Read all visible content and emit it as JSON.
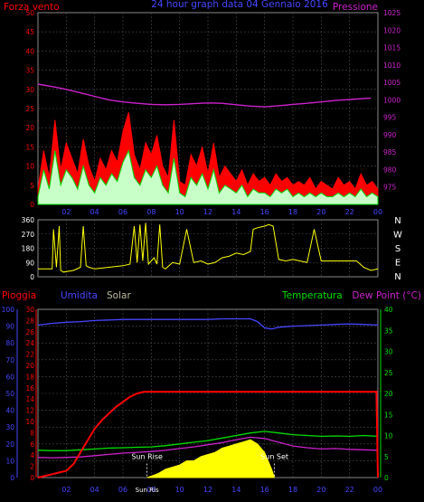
{
  "colors": {
    "bg": "#000000",
    "grid": "#4a4a4a",
    "red": "#ff0000",
    "blue": "#4646ff",
    "magenta": "#cc22cc",
    "green": "#00dd00",
    "yellow": "#ffff00",
    "white": "#ffffff",
    "tan": "#bbbb99",
    "lightgreen": "#c8ffc8"
  },
  "chart_data": [
    {
      "type": "line",
      "name": "wind-pressure",
      "title": "24 hour graph data 04 Gennaio 2016",
      "ylabel_left": "Forza vento",
      "ylabel_right": "Pressione",
      "ylim_left": [
        0,
        50
      ],
      "yticks_left": [
        "0",
        "5",
        "10",
        "15",
        "20",
        "25",
        "30",
        "35",
        "40",
        "45",
        "50"
      ],
      "ylim_right": [
        970,
        1025
      ],
      "yticks_right": [
        "975",
        "980",
        "985",
        "990",
        "995",
        "1000",
        "1005",
        "1010",
        "1015",
        "1020",
        "1025"
      ],
      "xlim": [
        0,
        24
      ],
      "xticks": [
        "02",
        "04",
        "06",
        "08",
        "10",
        "12",
        "14",
        "16",
        "18",
        "20",
        "22",
        "00"
      ],
      "grid": true,
      "pressure": {
        "x": [
          0,
          1,
          2,
          3,
          4,
          5,
          6,
          7,
          8,
          9,
          10,
          11,
          12,
          13,
          14,
          15,
          16,
          17,
          18,
          19,
          20,
          21,
          22,
          23.5
        ],
        "y": [
          1004.5,
          1003.8,
          1003,
          1002,
          1001,
          1000,
          999.4,
          999,
          998.7,
          998.6,
          998.7,
          998.9,
          999.1,
          999.0,
          998.6,
          998.2,
          998.0,
          998.3,
          998.7,
          999.0,
          999.4,
          999.8,
          1000.1,
          1000.5
        ]
      },
      "gust": {
        "x": [
          0,
          0.4,
          0.8,
          1.2,
          1.6,
          2.0,
          2.4,
          2.8,
          3.2,
          3.6,
          4.0,
          4.4,
          4.8,
          5.2,
          5.6,
          6.0,
          6.4,
          6.8,
          7.2,
          7.6,
          8.0,
          8.4,
          8.8,
          9.2,
          9.6,
          10.0,
          10.4,
          10.8,
          11.2,
          11.6,
          12.0,
          12.4,
          12.8,
          13.2,
          13.6,
          14.0,
          14.4,
          14.8,
          15.2,
          15.6,
          16.0,
          16.4,
          16.8,
          17.2,
          17.6,
          18.0,
          18.4,
          18.8,
          19.2,
          19.6,
          20.0,
          20.4,
          20.8,
          21.2,
          21.6,
          22.0,
          22.4,
          22.8,
          23.2,
          23.6,
          24.0
        ],
        "y": [
          4,
          14,
          7,
          22,
          9,
          16,
          12,
          8,
          17,
          10,
          6,
          12,
          9,
          14,
          11,
          19,
          24,
          13,
          9,
          16,
          13,
          18,
          10,
          7,
          22,
          6,
          5,
          13,
          10,
          15,
          8,
          16,
          7,
          10,
          8,
          6,
          9,
          5,
          8,
          6,
          7,
          5,
          8,
          6,
          7,
          5,
          6,
          5,
          7,
          4,
          6,
          5,
          4,
          7,
          5,
          6,
          4,
          8,
          5,
          6,
          4
        ]
      },
      "speed": {
        "x": [
          0,
          0.4,
          0.8,
          1.2,
          1.6,
          2.0,
          2.4,
          2.8,
          3.2,
          3.6,
          4.0,
          4.4,
          4.8,
          5.2,
          5.6,
          6.0,
          6.4,
          6.8,
          7.2,
          7.6,
          8.0,
          8.4,
          8.8,
          9.2,
          9.6,
          10.0,
          10.4,
          10.8,
          11.2,
          11.6,
          12.0,
          12.4,
          12.8,
          13.2,
          13.6,
          14.0,
          14.4,
          14.8,
          15.2,
          15.6,
          16.0,
          16.4,
          16.8,
          17.2,
          17.6,
          18.0,
          18.4,
          18.8,
          19.2,
          19.6,
          20.0,
          20.4,
          20.8,
          21.2,
          21.6,
          22.0,
          22.4,
          22.8,
          23.2,
          23.6,
          24.0
        ],
        "y": [
          2,
          9,
          4,
          14,
          5,
          9,
          7,
          4,
          10,
          5,
          3,
          7,
          5,
          8,
          6,
          11,
          14,
          7,
          5,
          9,
          7,
          10,
          5,
          3,
          12,
          3,
          2,
          7,
          5,
          8,
          4,
          9,
          3,
          5,
          4,
          3,
          5,
          2,
          4,
          3,
          3,
          2,
          4,
          3,
          4,
          2,
          3,
          2,
          3,
          2,
          3,
          2,
          2,
          3,
          2,
          3,
          2,
          4,
          2,
          3,
          2
        ]
      }
    },
    {
      "type": "line",
      "name": "wind-direction",
      "ylim": [
        0,
        360
      ],
      "yticks": [
        "0",
        "90",
        "180",
        "270",
        "360"
      ],
      "compass": [
        "N",
        "W",
        "S",
        "E",
        "N"
      ],
      "xlim": [
        0,
        24
      ],
      "grid": true,
      "direction": {
        "x": [
          0,
          1.0,
          1.1,
          1.3,
          1.5,
          1.6,
          1.8,
          2.5,
          3.0,
          3.2,
          3.4,
          3.6,
          4.0,
          5.0,
          6.0,
          6.5,
          6.8,
          7.0,
          7.2,
          7.4,
          7.6,
          7.8,
          8.0,
          8.2,
          8.4,
          8.6,
          8.8,
          9.0,
          9.5,
          10.0,
          10.5,
          11.0,
          11.5,
          12.0,
          12.5,
          13.0,
          13.5,
          14.0,
          14.5,
          15.0,
          15.2,
          15.5,
          16.0,
          16.3,
          16.6,
          17.0,
          17.5,
          18.0,
          18.5,
          19.0,
          19.5,
          20.0,
          21.0,
          22.0,
          22.5,
          23.0,
          23.5,
          24.0
        ],
        "y": [
          50,
          50,
          300,
          60,
          320,
          40,
          30,
          40,
          60,
          320,
          70,
          60,
          50,
          60,
          70,
          80,
          320,
          90,
          330,
          100,
          340,
          80,
          100,
          120,
          80,
          330,
          60,
          50,
          90,
          80,
          300,
          90,
          100,
          80,
          90,
          120,
          130,
          150,
          140,
          160,
          300,
          310,
          320,
          330,
          320,
          110,
          100,
          110,
          100,
          90,
          300,
          100,
          100,
          100,
          100,
          60,
          40,
          50
        ]
      }
    },
    {
      "type": "line",
      "name": "rain-humidity-temperature",
      "legend": [
        "Pioggia",
        "Umidita",
        "Solar",
        "Temperatura",
        "Dew Point (°C)"
      ],
      "ylim_rain": [
        0,
        100
      ],
      "yticks_rain": [
        "0",
        "10",
        "20",
        "30",
        "40",
        "50",
        "60",
        "70",
        "80",
        "90",
        "100"
      ],
      "ylim_hum": [
        0,
        30
      ],
      "yticks_hum": [
        "0",
        "2",
        "4",
        "6",
        "8",
        "10",
        "12",
        "14",
        "16",
        "18",
        "20",
        "22",
        "24",
        "26",
        "28",
        "30"
      ],
      "ylim_temp": [
        0,
        40
      ],
      "yticks_temp": [
        "0",
        "5",
        "10",
        "15",
        "20",
        "25",
        "30",
        "35",
        "40"
      ],
      "xlim": [
        0,
        24
      ],
      "xticks": [
        "02",
        "04",
        "06",
        "08",
        "10",
        "12",
        "14",
        "16",
        "18",
        "20",
        "22",
        "00"
      ],
      "sun_rise_label": "Sun Rise",
      "sun_set_label": "Sun Set",
      "sun_rise_x": 7.7,
      "sun_set_x": 16.7,
      "sun_mark": "Sun Ris",
      "grid": true,
      "rain": {
        "x": [
          0,
          0.5,
          1.0,
          1.5,
          2.0,
          2.5,
          3.0,
          3.5,
          4.0,
          4.5,
          5.0,
          5.5,
          6.0,
          6.5,
          7.0,
          7.5,
          8.0,
          9.0,
          10,
          12,
          14,
          16,
          18,
          20,
          22,
          23.9,
          24.0
        ],
        "y": [
          0,
          1,
          2,
          3,
          4,
          8,
          15,
          22,
          29,
          34,
          38,
          42,
          45,
          48,
          50,
          51,
          51,
          51,
          51,
          51,
          51,
          51,
          51,
          51,
          51,
          51,
          0
        ]
      },
      "humidity": {
        "x": [
          0,
          1,
          2,
          3,
          4,
          5,
          6,
          7,
          8,
          9,
          10,
          11,
          12,
          13,
          14,
          15,
          15.5,
          16,
          16.5,
          17,
          18,
          19,
          20,
          21,
          22,
          23,
          24
        ],
        "y": [
          27.2,
          27.5,
          27.7,
          27.8,
          28.0,
          28.1,
          28.2,
          28.2,
          28.2,
          28.2,
          28.2,
          28.2,
          28.2,
          28.3,
          28.3,
          28.3,
          27.8,
          26.7,
          26.5,
          26.8,
          27.0,
          27.1,
          27.2,
          27.3,
          27.4,
          27.3,
          27.2
        ]
      },
      "temperature": {
        "x": [
          0,
          1,
          2,
          3,
          4,
          5,
          6,
          7,
          8,
          9,
          10,
          11,
          12,
          13,
          14,
          15,
          16,
          17,
          18,
          19,
          20,
          21,
          22,
          23,
          24
        ],
        "y": [
          6.5,
          6.4,
          6.4,
          6.6,
          6.8,
          7.0,
          7.1,
          7.2,
          7.3,
          7.6,
          8.0,
          8.4,
          8.8,
          9.4,
          10.0,
          10.6,
          11.0,
          10.6,
          10.2,
          10.0,
          9.8,
          9.9,
          9.8,
          10.0,
          9.8
        ]
      },
      "dewpoint": {
        "x": [
          0,
          1,
          2,
          3,
          4,
          5,
          6,
          7,
          8,
          9,
          10,
          11,
          12,
          13,
          14,
          15,
          16,
          17,
          18,
          19,
          20,
          21,
          22,
          23,
          24
        ],
        "y": [
          4.8,
          4.7,
          4.8,
          4.9,
          5.2,
          5.5,
          5.8,
          6.0,
          6.2,
          6.5,
          6.9,
          7.3,
          7.8,
          8.3,
          9.0,
          9.6,
          9.3,
          8.4,
          7.5,
          7.1,
          6.8,
          6.9,
          6.7,
          6.6,
          6.5
        ]
      },
      "solar": {
        "x": [
          7.7,
          8.5,
          9.0,
          9.5,
          10.0,
          10.5,
          11.0,
          11.5,
          12.0,
          12.5,
          13.0,
          13.5,
          14.0,
          14.5,
          15.0,
          15.5,
          16.0,
          16.5,
          16.7
        ],
        "y": [
          0,
          1,
          2,
          2.5,
          3,
          4,
          4,
          5,
          5.5,
          6,
          7,
          7.5,
          8,
          8.5,
          9,
          8,
          6,
          2,
          0
        ]
      }
    }
  ]
}
